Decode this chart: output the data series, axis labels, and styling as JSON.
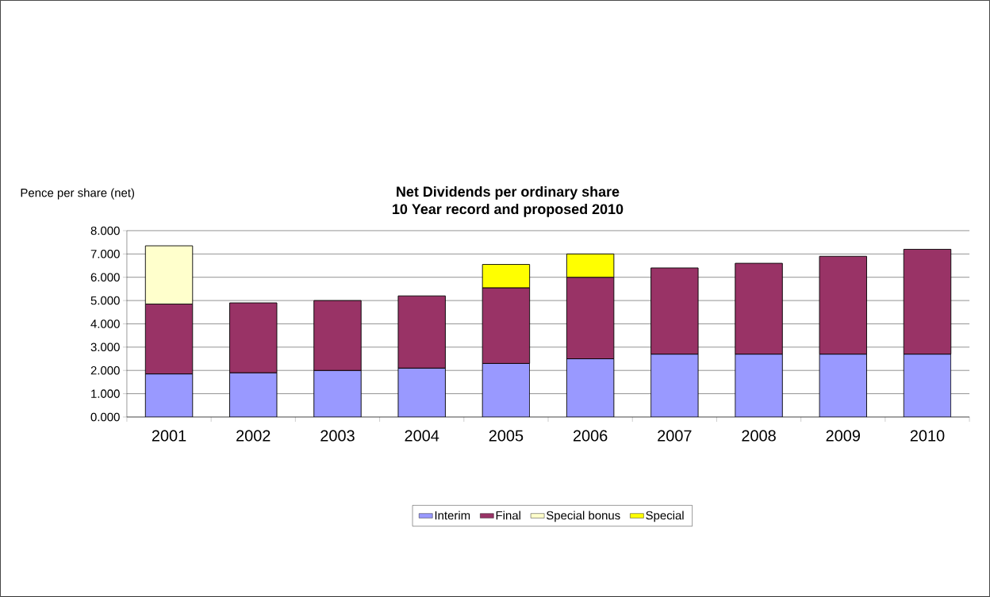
{
  "chart_data": {
    "type": "bar",
    "stacked": true,
    "title": "Net Dividends per ordinary share",
    "subtitle": "10 Year record and proposed 2010",
    "ylabel": "Pence per share (net)",
    "categories": [
      "2001",
      "2002",
      "2003",
      "2004",
      "2005",
      "2006",
      "2007",
      "2008",
      "2009",
      "2010"
    ],
    "series": [
      {
        "name": "Interim",
        "color": "#9999ff",
        "values": [
          1.85,
          1.9,
          2.0,
          2.1,
          2.3,
          2.5,
          2.7,
          2.7,
          2.7,
          2.7
        ]
      },
      {
        "name": "Final",
        "color": "#993366",
        "values": [
          3.0,
          3.0,
          3.0,
          3.1,
          3.25,
          3.5,
          3.7,
          3.9,
          4.2,
          4.5
        ]
      },
      {
        "name": "Special bonus",
        "color": "#ffffcc",
        "values": [
          2.5,
          null,
          null,
          null,
          null,
          null,
          null,
          null,
          null,
          null
        ]
      },
      {
        "name": "Special",
        "color": "#ffff00",
        "values": [
          null,
          null,
          null,
          null,
          1.0,
          1.0,
          null,
          null,
          null,
          null
        ]
      }
    ],
    "ylim": [
      0,
      8
    ],
    "yticks": [
      {
        "value": 0,
        "label": "0.000"
      },
      {
        "value": 1,
        "label": "1.000"
      },
      {
        "value": 2,
        "label": "2.000"
      },
      {
        "value": 3,
        "label": "3.000"
      },
      {
        "value": 4,
        "label": "4.000"
      },
      {
        "value": 5,
        "label": "5.000"
      },
      {
        "value": 6,
        "label": "6.000"
      },
      {
        "value": 7,
        "label": "7.000"
      },
      {
        "value": 8,
        "label": "8.000"
      }
    ],
    "grid": "y",
    "legend": "bottom"
  }
}
